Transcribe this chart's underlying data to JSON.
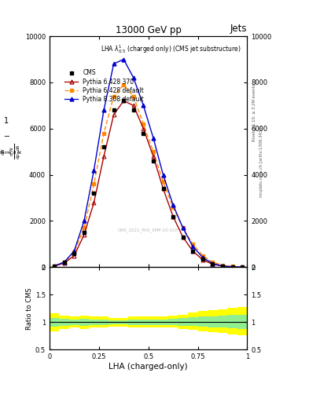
{
  "title": "13000 GeV pp",
  "title_right": "Jets",
  "xlabel": "LHA (charged-only)",
  "ylabel_ratio": "Ratio to CMS",
  "xlim": [
    0,
    1
  ],
  "ylim_main": [
    0,
    10000
  ],
  "ylim_ratio": [
    0.5,
    2.0
  ],
  "yticks_main": [
    0,
    2000,
    4000,
    6000,
    8000,
    10000
  ],
  "yticks_main_labels": [
    "0",
    "2000",
    "4000",
    "6000",
    "8000",
    "10000"
  ],
  "yticks_ratio": [
    0.5,
    1.0,
    1.5,
    2.0
  ],
  "yticks_ratio_labels": [
    "0.5",
    "1",
    "1.5",
    "2"
  ],
  "xticks": [
    0,
    0.25,
    0.5,
    0.75,
    1.0
  ],
  "xtick_labels": [
    "0",
    "0.25",
    "0.5",
    "0.75",
    "1"
  ],
  "cms_x": [
    0.025,
    0.075,
    0.125,
    0.175,
    0.225,
    0.275,
    0.325,
    0.375,
    0.425,
    0.475,
    0.525,
    0.575,
    0.625,
    0.675,
    0.725,
    0.775,
    0.825,
    0.875,
    0.925,
    0.975
  ],
  "cms_y": [
    50,
    200,
    600,
    1500,
    3200,
    5200,
    6800,
    7200,
    6800,
    5800,
    4600,
    3400,
    2200,
    1300,
    700,
    350,
    150,
    60,
    20,
    5
  ],
  "p6_370_x": [
    0.025,
    0.075,
    0.125,
    0.175,
    0.225,
    0.275,
    0.325,
    0.375,
    0.425,
    0.475,
    0.525,
    0.575,
    0.625,
    0.675,
    0.725,
    0.775,
    0.825,
    0.875,
    0.925,
    0.975
  ],
  "p6_370_y": [
    50,
    180,
    500,
    1400,
    2800,
    4800,
    6600,
    7200,
    7000,
    6000,
    4800,
    3400,
    2200,
    1300,
    700,
    320,
    130,
    50,
    15,
    4
  ],
  "p6_def_x": [
    0.025,
    0.075,
    0.125,
    0.175,
    0.225,
    0.275,
    0.325,
    0.375,
    0.425,
    0.475,
    0.525,
    0.575,
    0.625,
    0.675,
    0.725,
    0.775,
    0.825,
    0.875,
    0.925,
    0.975
  ],
  "p6_def_y": [
    60,
    220,
    650,
    1700,
    3600,
    5800,
    7400,
    7900,
    7400,
    6200,
    5000,
    3700,
    2600,
    1700,
    1000,
    500,
    220,
    90,
    30,
    8
  ],
  "p8_def_x": [
    0.025,
    0.075,
    0.125,
    0.175,
    0.225,
    0.275,
    0.325,
    0.375,
    0.425,
    0.475,
    0.525,
    0.575,
    0.625,
    0.675,
    0.725,
    0.775,
    0.825,
    0.875,
    0.925,
    0.975
  ],
  "p8_def_y": [
    60,
    220,
    700,
    2000,
    4200,
    6800,
    8800,
    9000,
    8200,
    7000,
    5600,
    4000,
    2700,
    1700,
    900,
    420,
    160,
    55,
    15,
    4
  ],
  "cms_color": "#000000",
  "p6_370_color": "#aa0000",
  "p6_def_color": "#ff8800",
  "p8_def_color": "#0000cc",
  "ratio_yellow_lo": [
    0.84,
    0.88,
    0.9,
    0.88,
    0.9,
    0.9,
    0.92,
    0.92,
    0.9,
    0.9,
    0.9,
    0.9,
    0.9,
    0.88,
    0.86,
    0.84,
    0.82,
    0.8,
    0.78,
    0.76
  ],
  "ratio_yellow_hi": [
    1.16,
    1.12,
    1.1,
    1.12,
    1.1,
    1.1,
    1.08,
    1.08,
    1.1,
    1.1,
    1.1,
    1.1,
    1.12,
    1.14,
    1.18,
    1.2,
    1.22,
    1.24,
    1.26,
    1.28
  ],
  "ratio_green_lo": [
    0.92,
    0.94,
    0.95,
    0.94,
    0.95,
    0.95,
    0.96,
    0.96,
    0.95,
    0.95,
    0.95,
    0.95,
    0.95,
    0.94,
    0.93,
    0.92,
    0.91,
    0.9,
    0.89,
    0.88
  ],
  "ratio_green_hi": [
    1.08,
    1.06,
    1.05,
    1.06,
    1.05,
    1.05,
    1.04,
    1.04,
    1.05,
    1.05,
    1.05,
    1.05,
    1.07,
    1.08,
    1.09,
    1.1,
    1.11,
    1.12,
    1.13,
    1.14
  ],
  "watermark": "CMS_2021_PAS_SMP-20-010",
  "right_label1": "Rivet 3.1.10, ≥ 3.2M events",
  "right_label2": "mcplots.cern.ch [arXiv:1306.3436]"
}
